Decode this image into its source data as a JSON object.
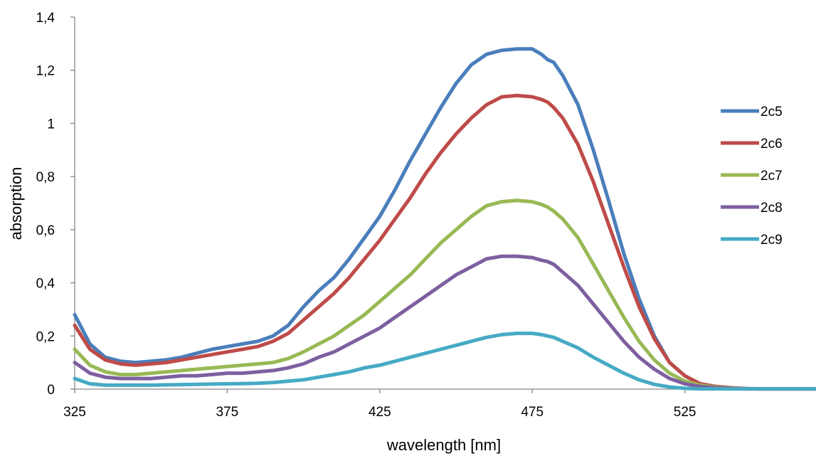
{
  "chart_data": {
    "type": "line",
    "title": "",
    "xlabel": "wavelength [nm]",
    "ylabel": "absorption",
    "xlim": [
      325,
      568
    ],
    "ylim": [
      0,
      1.4
    ],
    "x_ticks": [
      325,
      375,
      425,
      475,
      525
    ],
    "x_tick_labels": [
      "325",
      "375",
      "425",
      "475",
      "525"
    ],
    "y_ticks": [
      0,
      0.2,
      0.4,
      0.6,
      0.8,
      1,
      1.2,
      1.4
    ],
    "y_tick_labels": [
      "0",
      "0,2",
      "0,4",
      "0,6",
      "0,8",
      "1",
      "1,2",
      "1,4"
    ],
    "grid": false,
    "legend_position": "right",
    "x": [
      325,
      330,
      335,
      340,
      345,
      350,
      355,
      360,
      365,
      370,
      375,
      380,
      385,
      390,
      395,
      400,
      405,
      410,
      415,
      420,
      425,
      430,
      435,
      440,
      445,
      450,
      455,
      460,
      465,
      470,
      475,
      478,
      480,
      482,
      485,
      490,
      495,
      500,
      505,
      510,
      515,
      520,
      525,
      530,
      535,
      540,
      545,
      550,
      555,
      560,
      568
    ],
    "series": [
      {
        "name": "2c5",
        "color": "#4a7ebb",
        "values": [
          0.28,
          0.17,
          0.12,
          0.105,
          0.1,
          0.105,
          0.11,
          0.12,
          0.135,
          0.15,
          0.16,
          0.17,
          0.18,
          0.2,
          0.24,
          0.31,
          0.37,
          0.42,
          0.49,
          0.57,
          0.65,
          0.75,
          0.86,
          0.96,
          1.06,
          1.15,
          1.22,
          1.26,
          1.275,
          1.28,
          1.28,
          1.26,
          1.24,
          1.23,
          1.18,
          1.07,
          0.9,
          0.71,
          0.51,
          0.34,
          0.2,
          0.1,
          0.05,
          0.02,
          0.01,
          0.005,
          0.002,
          0.001,
          0.001,
          0.001,
          0.001
        ]
      },
      {
        "name": "2c6",
        "color": "#be4b48",
        "values": [
          0.24,
          0.15,
          0.11,
          0.095,
          0.09,
          0.095,
          0.1,
          0.11,
          0.12,
          0.13,
          0.14,
          0.15,
          0.16,
          0.18,
          0.21,
          0.26,
          0.31,
          0.36,
          0.42,
          0.49,
          0.56,
          0.64,
          0.72,
          0.81,
          0.89,
          0.96,
          1.02,
          1.07,
          1.1,
          1.105,
          1.1,
          1.09,
          1.08,
          1.06,
          1.02,
          0.92,
          0.78,
          0.62,
          0.46,
          0.31,
          0.19,
          0.1,
          0.05,
          0.02,
          0.01,
          0.005,
          0.002,
          0.001,
          0.001,
          0.001,
          0.001
        ]
      },
      {
        "name": "2c7",
        "color": "#98b954",
        "values": [
          0.15,
          0.09,
          0.065,
          0.055,
          0.055,
          0.06,
          0.065,
          0.07,
          0.075,
          0.08,
          0.085,
          0.09,
          0.095,
          0.1,
          0.115,
          0.14,
          0.17,
          0.2,
          0.24,
          0.28,
          0.33,
          0.38,
          0.43,
          0.49,
          0.55,
          0.6,
          0.65,
          0.69,
          0.705,
          0.71,
          0.705,
          0.695,
          0.685,
          0.67,
          0.64,
          0.57,
          0.47,
          0.37,
          0.27,
          0.18,
          0.11,
          0.06,
          0.03,
          0.015,
          0.007,
          0.003,
          0.001,
          0.001,
          0.001,
          0.001,
          0.001
        ]
      },
      {
        "name": "2c8",
        "color": "#7d60a0",
        "values": [
          0.1,
          0.06,
          0.045,
          0.04,
          0.04,
          0.04,
          0.045,
          0.05,
          0.05,
          0.055,
          0.06,
          0.06,
          0.065,
          0.07,
          0.08,
          0.095,
          0.12,
          0.14,
          0.17,
          0.2,
          0.23,
          0.27,
          0.31,
          0.35,
          0.39,
          0.43,
          0.46,
          0.49,
          0.5,
          0.5,
          0.495,
          0.485,
          0.48,
          0.47,
          0.44,
          0.39,
          0.32,
          0.25,
          0.18,
          0.12,
          0.075,
          0.04,
          0.02,
          0.01,
          0.005,
          0.002,
          0.001,
          0.001,
          0.001,
          0.001,
          0.001
        ]
      },
      {
        "name": "2c9",
        "color": "#46aac5",
        "values": [
          0.04,
          0.02,
          0.015,
          0.015,
          0.015,
          0.015,
          0.016,
          0.017,
          0.018,
          0.019,
          0.02,
          0.021,
          0.022,
          0.025,
          0.03,
          0.035,
          0.045,
          0.055,
          0.065,
          0.08,
          0.09,
          0.105,
          0.12,
          0.135,
          0.15,
          0.165,
          0.18,
          0.195,
          0.205,
          0.21,
          0.21,
          0.205,
          0.2,
          0.195,
          0.18,
          0.155,
          0.12,
          0.09,
          0.06,
          0.035,
          0.018,
          0.008,
          0.003,
          0.001,
          0.001,
          0.001,
          0.001,
          0.001,
          0.001,
          0.001,
          0.001
        ]
      }
    ]
  }
}
